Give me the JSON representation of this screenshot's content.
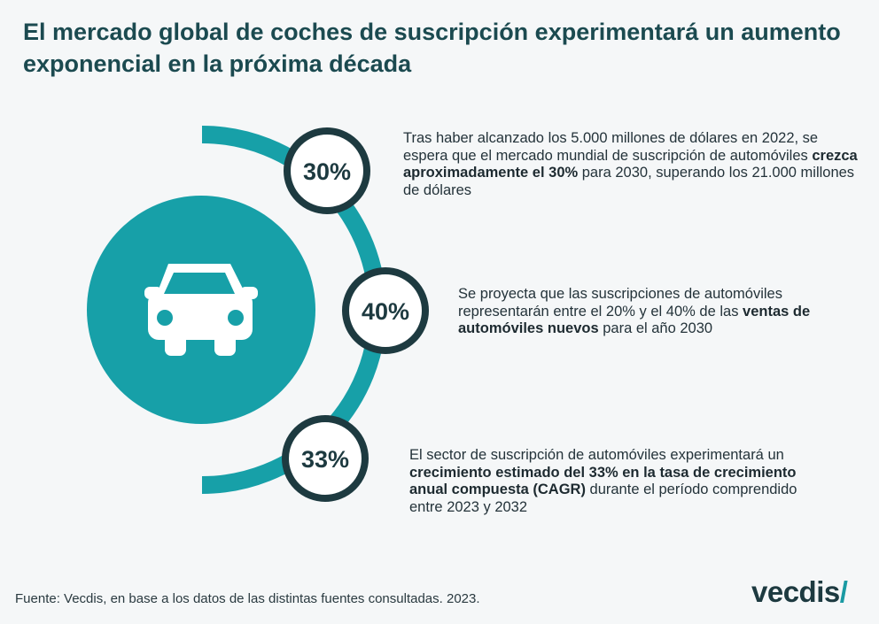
{
  "title": "El mercado global de coches de suscripción experimentará un aumento exponencial en la próxima década",
  "colors": {
    "teal": "#17a0a8",
    "dark": "#1d3a40",
    "background": "#f5f7f8",
    "white": "#ffffff"
  },
  "icons": [
    "car-icon"
  ],
  "items": [
    {
      "pct": "30%",
      "text_before": "Tras haber alcanzado los 5.000 millones de dólares en 2022, se espera que el mercado mundial de suscripción de automóviles ",
      "text_bold": "crezca aproximadamente el 30%",
      "text_after": " para 2030, superando los 21.000 millones de dólares"
    },
    {
      "pct": "40%",
      "text_before": "Se proyecta que las suscripciones de automóviles representarán entre el 20% y el 40% de las ",
      "text_bold": "ventas de automóviles nuevos",
      "text_after": " para el año 2030"
    },
    {
      "pct": "33%",
      "text_before": "El sector de suscripción de automóviles experimentará un ",
      "text_bold": "crecimiento estimado del 33% en la tasa de crecimiento anual compuesta (CAGR)",
      "text_after": " durante el período comprendido entre 2023 y 2032"
    }
  ],
  "source": "Fuente: Vecdis, en base a los datos de las distintas fuentes consultadas. 2023.",
  "logo": {
    "text": "vecdis",
    "mark": "/"
  }
}
